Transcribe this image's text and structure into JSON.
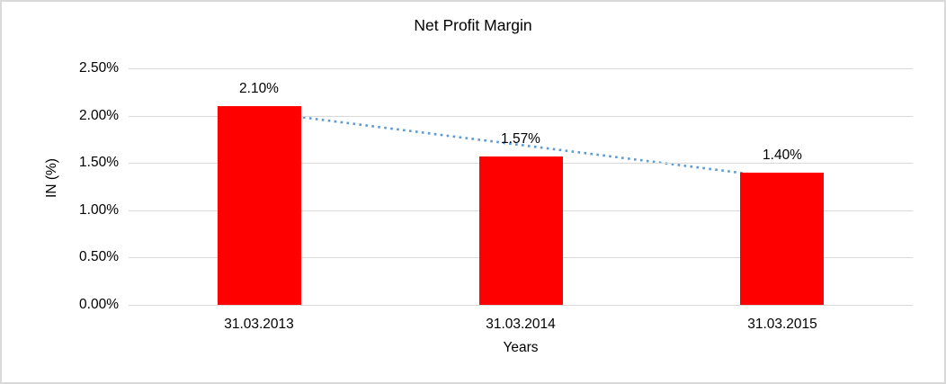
{
  "chart_data": {
    "type": "bar",
    "title": "Net Profit Margin",
    "categories": [
      "31.03.2013",
      "31.03.2014",
      "31.03.2015"
    ],
    "values": [
      2.1,
      1.57,
      1.4
    ],
    "data_labels": [
      "2.10%",
      "1.57%",
      "1.40%"
    ],
    "xlabel": "Years",
    "ylabel": "IN (%)",
    "ylim": [
      0,
      2.5
    ],
    "ytick_step": 0.5,
    "ytick_labels": [
      "0.00%",
      "0.50%",
      "1.00%",
      "1.50%",
      "2.00%",
      "2.50%"
    ],
    "bar_color": "#ff0000",
    "gridline_color": "#d9d9d9",
    "trendline": {
      "type": "linear",
      "style": "dotted",
      "color": "#5b9bd5"
    },
    "grid": true,
    "legend": false
  }
}
